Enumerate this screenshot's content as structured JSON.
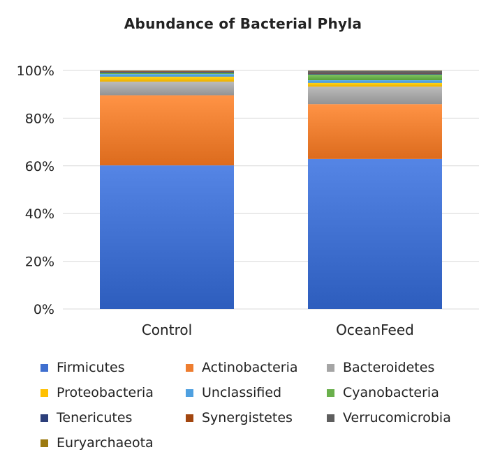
{
  "chart_data": {
    "type": "bar",
    "stacked": true,
    "percent": true,
    "title": "Abundance of Bacterial Phyla",
    "xlabel": "",
    "ylabel": "",
    "ylim": [
      0,
      100
    ],
    "y_ticks": [
      "0%",
      "20%",
      "40%",
      "60%",
      "80%",
      "100%"
    ],
    "y_tick_values": [
      0,
      20,
      40,
      60,
      80,
      100
    ],
    "grid": true,
    "legend_position": "bottom",
    "categories": [
      "Control",
      "OceanFeed"
    ],
    "series": [
      {
        "name": "Firmicutes",
        "values": [
          60.2,
          62.9
        ],
        "color": "#3f6fcf"
      },
      {
        "name": "Actinobacteria",
        "values": [
          29.4,
          23.0
        ],
        "color": "#ee7d2f"
      },
      {
        "name": "Bacteroidetes",
        "values": [
          5.7,
          7.3
        ],
        "color": "#a5a5a5"
      },
      {
        "name": "Proteobacteria",
        "values": [
          2.1,
          1.6
        ],
        "color": "#ffc000"
      },
      {
        "name": "Unclassified",
        "values": [
          1.1,
          1.1
        ],
        "color": "#4fa0e0"
      },
      {
        "name": "Cyanobacteria",
        "values": [
          0.5,
          2.4
        ],
        "color": "#6ab04c"
      },
      {
        "name": "Tenericutes",
        "values": [
          0.4,
          0.4
        ],
        "color": "#2c3f7a"
      },
      {
        "name": "Synergistetes",
        "values": [
          0.2,
          0.2
        ],
        "color": "#a2460f"
      },
      {
        "name": " Verrucomicrobia",
        "values": [
          0.3,
          1.0
        ],
        "color": "#5e5e5e"
      },
      {
        "name": "Euryarchaeota",
        "values": [
          0.1,
          0.1
        ],
        "color": "#9c7a10"
      }
    ]
  }
}
